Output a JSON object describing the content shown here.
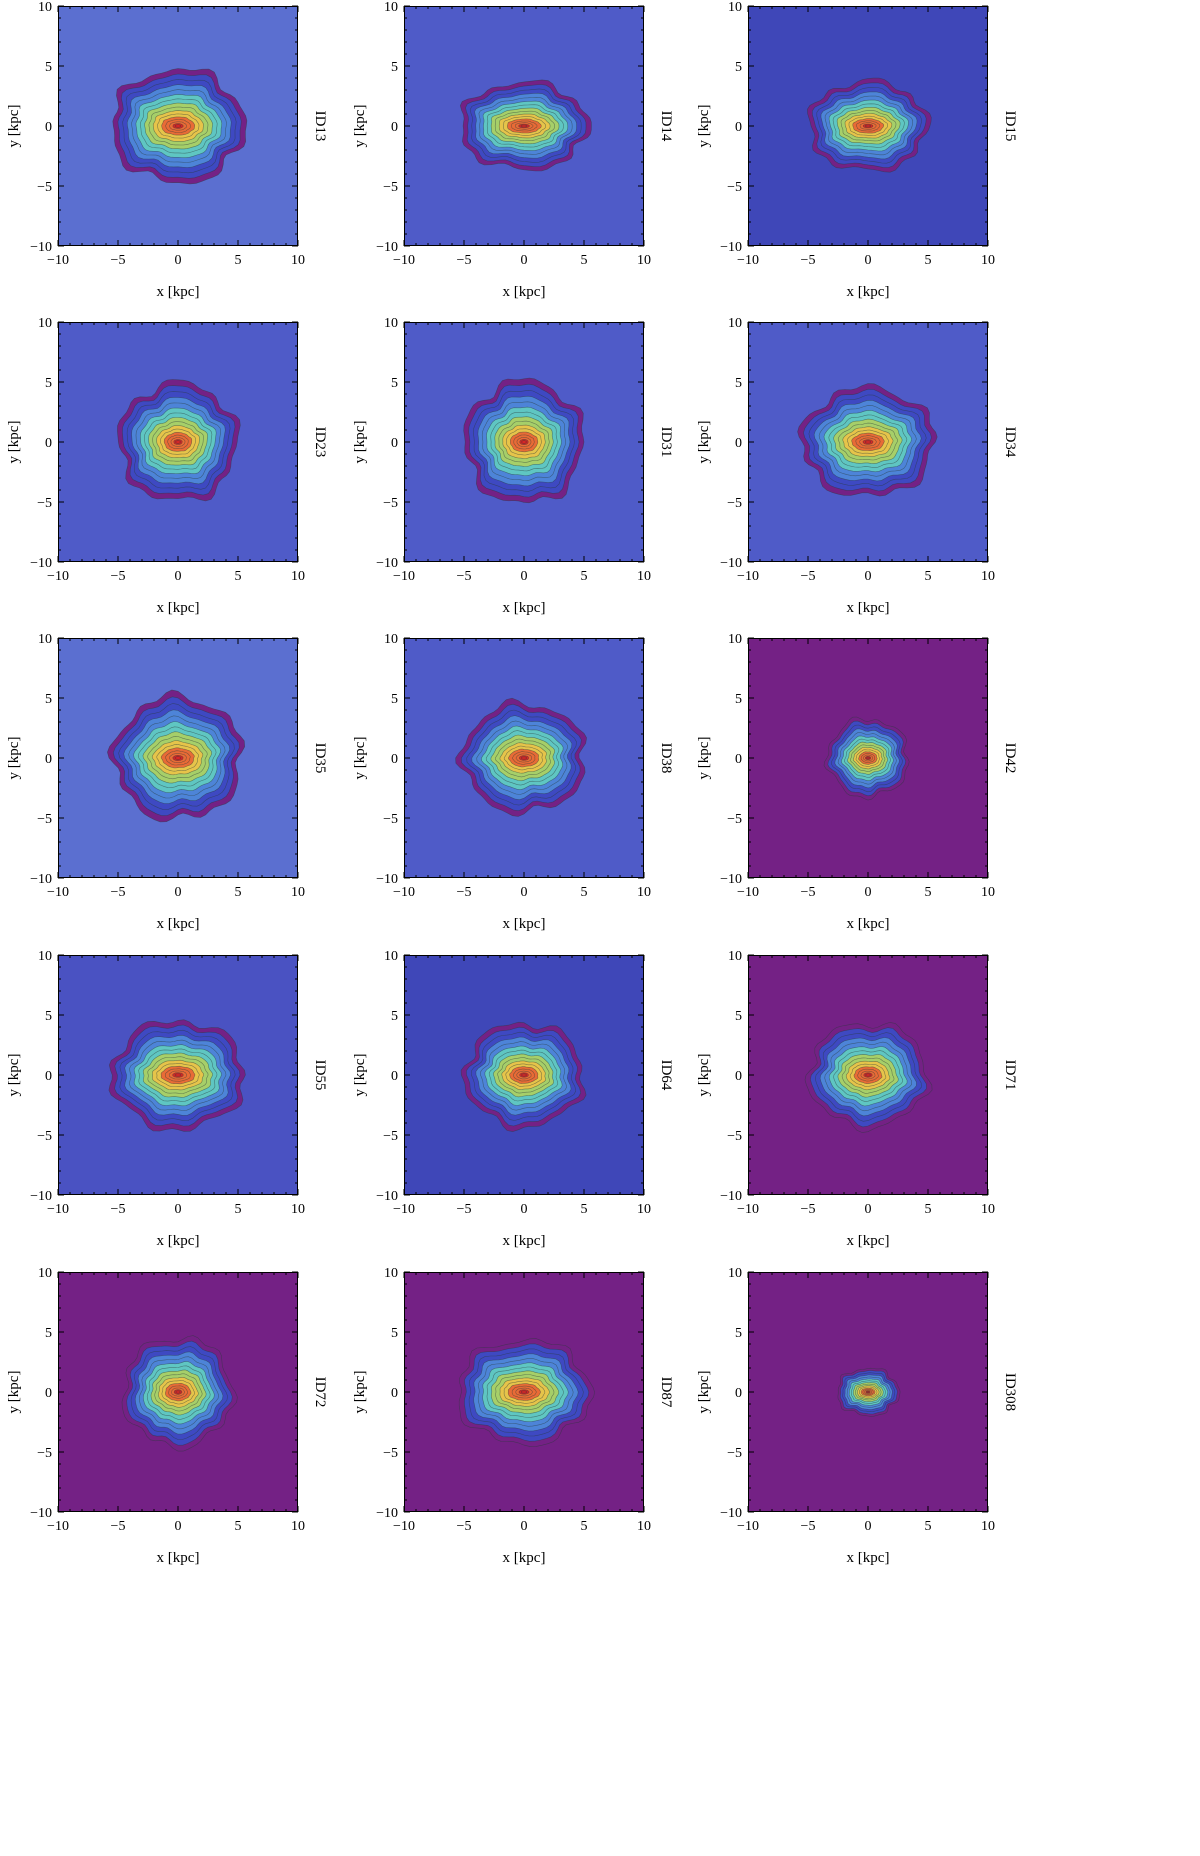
{
  "figure": {
    "rows": 5,
    "cols": 3
  },
  "chart_data": [
    {
      "type": "contour",
      "id_label": "ID13",
      "xlabel": "x [kpc]",
      "ylabel": "y [kpc]",
      "xlim": [
        -10,
        10
      ],
      "ylim": [
        -10,
        10
      ],
      "xticks": [
        -10,
        -5,
        0,
        5,
        10
      ],
      "yticks": [
        -10,
        -5,
        0,
        5,
        10
      ],
      "spread_x": 5.6,
      "spread_y": 4.8,
      "core_elongation": 2.0,
      "background": "#5b6fd0",
      "colormap": [
        "#742185",
        "#3e49c2",
        "#4d84d8",
        "#5fc6c2",
        "#a6cf69",
        "#e6c44a",
        "#e86b36",
        "#d82626"
      ]
    },
    {
      "type": "contour",
      "id_label": "ID14",
      "xlabel": "x [kpc]",
      "ylabel": "y [kpc]",
      "xlim": [
        -10,
        10
      ],
      "ylim": [
        -10,
        10
      ],
      "xticks": [
        -10,
        -5,
        0,
        5,
        10
      ],
      "yticks": [
        -10,
        -5,
        0,
        5,
        10
      ],
      "spread_x": 5.4,
      "spread_y": 3.7,
      "core_elongation": 2.3,
      "background": "#4f5bc8",
      "colormap": [
        "#742185",
        "#3e49c2",
        "#4d84d8",
        "#5fc6c2",
        "#a6cf69",
        "#e6c44a",
        "#e86b36",
        "#d82626"
      ]
    },
    {
      "type": "contour",
      "id_label": "ID15",
      "xlabel": "x [kpc]",
      "ylabel": "y [kpc]",
      "xlim": [
        -10,
        10
      ],
      "ylim": [
        -10,
        10
      ],
      "xticks": [
        -10,
        -5,
        0,
        5,
        10
      ],
      "yticks": [
        -10,
        -5,
        0,
        5,
        10
      ],
      "spread_x": 5.0,
      "spread_y": 3.8,
      "core_elongation": 2.2,
      "background": "#3f47b8",
      "colormap": [
        "#742185",
        "#3e49c2",
        "#4d84d8",
        "#5fc6c2",
        "#a6cf69",
        "#e6c44a",
        "#e86b36",
        "#d82626"
      ]
    },
    {
      "type": "contour",
      "id_label": "ID23",
      "xlabel": "x [kpc]",
      "ylabel": "y [kpc]",
      "xlim": [
        -10,
        10
      ],
      "ylim": [
        -10,
        10
      ],
      "xticks": [
        -10,
        -5,
        0,
        5,
        10
      ],
      "yticks": [
        -10,
        -5,
        0,
        5,
        10
      ],
      "spread_x": 5.0,
      "spread_y": 5.0,
      "core_elongation": 1.7,
      "background": "#4f5bc8",
      "colormap": [
        "#742185",
        "#3e49c2",
        "#4d84d8",
        "#5fc6c2",
        "#a6cf69",
        "#e6c44a",
        "#e86b36",
        "#d82626"
      ]
    },
    {
      "type": "contour",
      "id_label": "ID31",
      "xlabel": "x [kpc]",
      "ylabel": "y [kpc]",
      "xlim": [
        -10,
        10
      ],
      "ylim": [
        -10,
        10
      ],
      "xticks": [
        -10,
        -5,
        0,
        5,
        10
      ],
      "yticks": [
        -10,
        -5,
        0,
        5,
        10
      ],
      "spread_x": 5.0,
      "spread_y": 5.2,
      "core_elongation": 1.7,
      "background": "#4f5bc8",
      "colormap": [
        "#742185",
        "#3e49c2",
        "#4d84d8",
        "#5fc6c2",
        "#a6cf69",
        "#e6c44a",
        "#e86b36",
        "#d82626"
      ]
    },
    {
      "type": "contour",
      "id_label": "ID34",
      "xlabel": "x [kpc]",
      "ylabel": "y [kpc]",
      "xlim": [
        -10,
        10
      ],
      "ylim": [
        -10,
        10
      ],
      "xticks": [
        -10,
        -5,
        0,
        5,
        10
      ],
      "yticks": [
        -10,
        -5,
        0,
        5,
        10
      ],
      "spread_x": 5.6,
      "spread_y": 4.6,
      "core_elongation": 1.9,
      "background": "#4f5bc8",
      "colormap": [
        "#742185",
        "#3e49c2",
        "#4d84d8",
        "#5fc6c2",
        "#a6cf69",
        "#e6c44a",
        "#e86b36",
        "#d82626"
      ]
    },
    {
      "type": "contour",
      "id_label": "ID35",
      "xlabel": "x [kpc]",
      "ylabel": "y [kpc]",
      "xlim": [
        -10,
        10
      ],
      "ylim": [
        -10,
        10
      ],
      "xticks": [
        -10,
        -5,
        0,
        5,
        10
      ],
      "yticks": [
        -10,
        -5,
        0,
        5,
        10
      ],
      "spread_x": 5.4,
      "spread_y": 5.2,
      "core_elongation": 2.1,
      "background": "#5b6fd0",
      "colormap": [
        "#742185",
        "#3e49c2",
        "#4d84d8",
        "#5fc6c2",
        "#a6cf69",
        "#e6c44a",
        "#e86b36",
        "#d82626"
      ]
    },
    {
      "type": "contour",
      "id_label": "ID38",
      "xlabel": "x [kpc]",
      "ylabel": "y [kpc]",
      "xlim": [
        -10,
        10
      ],
      "ylim": [
        -10,
        10
      ],
      "xticks": [
        -10,
        -5,
        0,
        5,
        10
      ],
      "yticks": [
        -10,
        -5,
        0,
        5,
        10
      ],
      "spread_x": 5.2,
      "spread_y": 4.6,
      "core_elongation": 1.9,
      "background": "#4f5bc8",
      "colormap": [
        "#742185",
        "#3e49c2",
        "#4d84d8",
        "#5fc6c2",
        "#a6cf69",
        "#e6c44a",
        "#e86b36",
        "#d82626"
      ]
    },
    {
      "type": "contour",
      "id_label": "ID42",
      "xlabel": "x [kpc]",
      "ylabel": "y [kpc]",
      "xlim": [
        -10,
        10
      ],
      "ylim": [
        -10,
        10
      ],
      "xticks": [
        -10,
        -5,
        0,
        5,
        10
      ],
      "yticks": [
        -10,
        -5,
        0,
        5,
        10
      ],
      "spread_x": 3.4,
      "spread_y": 3.3,
      "core_elongation": 1.6,
      "background": "#742185",
      "colormap": [
        "#742185",
        "#3e49c2",
        "#4d84d8",
        "#5fc6c2",
        "#a6cf69",
        "#e6c44a",
        "#e86b36",
        "#d82626"
      ]
    },
    {
      "type": "contour",
      "id_label": "ID55",
      "xlabel": "x [kpc]",
      "ylabel": "y [kpc]",
      "xlim": [
        -10,
        10
      ],
      "ylim": [
        -10,
        10
      ],
      "xticks": [
        -10,
        -5,
        0,
        5,
        10
      ],
      "yticks": [
        -10,
        -5,
        0,
        5,
        10
      ],
      "spread_x": 5.6,
      "spread_y": 4.6,
      "core_elongation": 2.1,
      "background": "#4a52c2",
      "colormap": [
        "#742185",
        "#3e49c2",
        "#4d84d8",
        "#5fc6c2",
        "#a6cf69",
        "#e6c44a",
        "#e86b36",
        "#d82626"
      ]
    },
    {
      "type": "contour",
      "id_label": "ID64",
      "xlabel": "x [kpc]",
      "ylabel": "y [kpc]",
      "xlim": [
        -10,
        10
      ],
      "ylim": [
        -10,
        10
      ],
      "xticks": [
        -10,
        -5,
        0,
        5,
        10
      ],
      "yticks": [
        -10,
        -5,
        0,
        5,
        10
      ],
      "spread_x": 5.0,
      "spread_y": 4.4,
      "core_elongation": 1.8,
      "background": "#3f47b8",
      "colormap": [
        "#742185",
        "#3e49c2",
        "#4d84d8",
        "#5fc6c2",
        "#a6cf69",
        "#e6c44a",
        "#e86b36",
        "#d82626"
      ]
    },
    {
      "type": "contour",
      "id_label": "ID71",
      "xlabel": "x [kpc]",
      "ylabel": "y [kpc]",
      "xlim": [
        -10,
        10
      ],
      "ylim": [
        -10,
        10
      ],
      "xticks": [
        -10,
        -5,
        0,
        5,
        10
      ],
      "yticks": [
        -10,
        -5,
        0,
        5,
        10
      ],
      "spread_x": 5.0,
      "spread_y": 4.4,
      "core_elongation": 1.7,
      "background": "#742185",
      "colormap": [
        "#742185",
        "#3e49c2",
        "#4d84d8",
        "#5fc6c2",
        "#a6cf69",
        "#e6c44a",
        "#e86b36",
        "#d82626"
      ]
    },
    {
      "type": "contour",
      "id_label": "ID72",
      "xlabel": "x [kpc]",
      "ylabel": "y [kpc]",
      "xlim": [
        -10,
        10
      ],
      "ylim": [
        -10,
        10
      ],
      "xticks": [
        -10,
        -5,
        0,
        5,
        10
      ],
      "yticks": [
        -10,
        -5,
        0,
        5,
        10
      ],
      "spread_x": 4.6,
      "spread_y": 4.6,
      "core_elongation": 1.7,
      "background": "#742185",
      "colormap": [
        "#742185",
        "#3e49c2",
        "#4d84d8",
        "#5fc6c2",
        "#a6cf69",
        "#e6c44a",
        "#e86b36",
        "#d82626"
      ]
    },
    {
      "type": "contour",
      "id_label": "ID87",
      "xlabel": "x [kpc]",
      "ylabel": "y [kpc]",
      "xlim": [
        -10,
        10
      ],
      "ylim": [
        -10,
        10
      ],
      "xticks": [
        -10,
        -5,
        0,
        5,
        10
      ],
      "yticks": [
        -10,
        -5,
        0,
        5,
        10
      ],
      "spread_x": 5.6,
      "spread_y": 4.4,
      "core_elongation": 1.9,
      "background": "#742185",
      "colormap": [
        "#742185",
        "#3e49c2",
        "#4d84d8",
        "#5fc6c2",
        "#a6cf69",
        "#e6c44a",
        "#e86b36",
        "#d82626"
      ]
    },
    {
      "type": "contour",
      "id_label": "ID308",
      "xlabel": "x [kpc]",
      "ylabel": "y [kpc]",
      "xlim": [
        -10,
        10
      ],
      "ylim": [
        -10,
        10
      ],
      "xticks": [
        -10,
        -5,
        0,
        5,
        10
      ],
      "yticks": [
        -10,
        -5,
        0,
        5,
        10
      ],
      "spread_x": 2.6,
      "spread_y": 2.0,
      "core_elongation": 1.6,
      "background": "#742185",
      "colormap": [
        "#742185",
        "#3e49c2",
        "#4d84d8",
        "#5fc6c2",
        "#a6cf69",
        "#e6c44a",
        "#e86b36",
        "#d82626"
      ]
    }
  ]
}
